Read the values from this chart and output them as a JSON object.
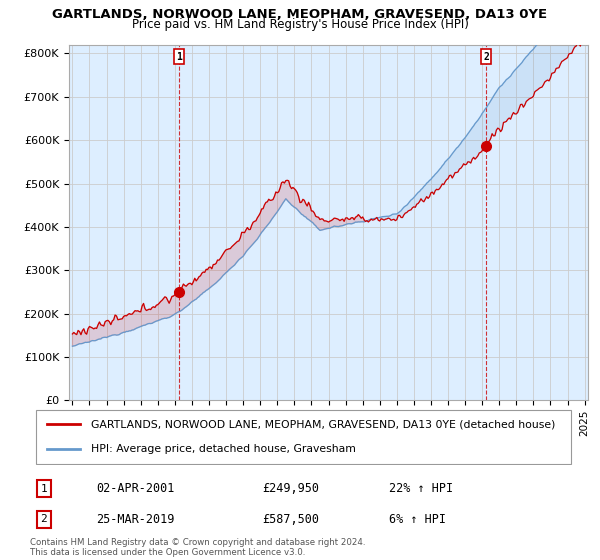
{
  "title": "GARTLANDS, NORWOOD LANE, MEOPHAM, GRAVESEND, DA13 0YE",
  "subtitle": "Price paid vs. HM Land Registry's House Price Index (HPI)",
  "ylabel_ticks": [
    "£0",
    "£100K",
    "£200K",
    "£300K",
    "£400K",
    "£500K",
    "£600K",
    "£700K",
    "£800K"
  ],
  "ytick_vals": [
    0,
    100000,
    200000,
    300000,
    400000,
    500000,
    600000,
    700000,
    800000
  ],
  "ylim": [
    0,
    820000
  ],
  "legend_line1": "GARTLANDS, NORWOOD LANE, MEOPHAM, GRAVESEND, DA13 0YE (detached house)",
  "legend_line2": "HPI: Average price, detached house, Gravesham",
  "sale1_label": "1",
  "sale1_date": "02-APR-2001",
  "sale1_price": "£249,950",
  "sale1_hpi": "22% ↑ HPI",
  "sale1_x": 2001.25,
  "sale1_y": 249950,
  "sale2_label": "2",
  "sale2_date": "25-MAR-2019",
  "sale2_price": "£587,500",
  "sale2_hpi": "6% ↑ HPI",
  "sale2_x": 2019.23,
  "sale2_y": 587500,
  "red_color": "#cc0000",
  "blue_color": "#6699cc",
  "fill_color": "#ddeeff",
  "background_color": "#ffffff",
  "grid_color": "#cccccc",
  "footer": "Contains HM Land Registry data © Crown copyright and database right 2024.\nThis data is licensed under the Open Government Licence v3.0.",
  "xmin": 1995,
  "xmax": 2025
}
